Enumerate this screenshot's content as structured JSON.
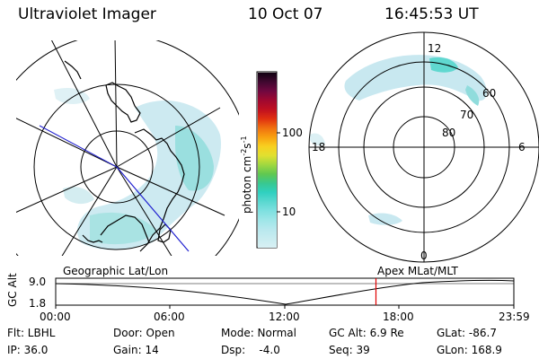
{
  "header": {
    "title": "Ultraviolet Imager",
    "date": "10 Oct 07",
    "time": "16:45:53 UT"
  },
  "left_map": {
    "caption": "Geographic Lat/Lon"
  },
  "right_map": {
    "caption": "Apex MLat/MLT",
    "mlt_labels": {
      "top": "12",
      "left": "18",
      "right": "6",
      "bottom": "0"
    },
    "lat_labels": [
      "60",
      "70",
      "80"
    ]
  },
  "colorbar": {
    "unit_label": "photon cm",
    "unit_exp1": "-2",
    "unit_mid": "s",
    "unit_exp2": "-1",
    "ticks": [
      "100",
      "10"
    ],
    "colors": [
      "#d8f0f4",
      "#c8ecf0",
      "#b8e8ee",
      "#9ee6e8",
      "#7ee0e0",
      "#5ad8d0",
      "#30d0c0",
      "#38c890",
      "#60c850",
      "#a0d840",
      "#e0e030",
      "#f8d020",
      "#f8a010",
      "#f07010",
      "#e03010",
      "#c01020",
      "#a00830",
      "#700840",
      "#400830",
      "#100010"
    ]
  },
  "timeline": {
    "ylabel": "GC Alt",
    "ymax": "9.0",
    "ymin": "1.8",
    "xticks": [
      "00:00",
      "06:00",
      "12:00",
      "18:00",
      "23:59"
    ],
    "current_time_fraction": 0.699
  },
  "footer": {
    "flt": "Flt: LBHL",
    "ip": "IP: 36.0",
    "door": "Door: Open",
    "gain": "Gain: 14",
    "mode": "Mode: Normal",
    "dsp": "Dsp:    -4.0",
    "gcalt": "GC Alt: 6.9 Re",
    "seq": "Seq: 39",
    "glat": "GLat: -86.7",
    "glon": "GLon: 168.9"
  },
  "colors": {
    "aurora_light": "#c8e8f0",
    "aurora_cyan": "#40e0d0",
    "cursor_red": "#e00000",
    "meridian_blue": "#2020d0"
  }
}
